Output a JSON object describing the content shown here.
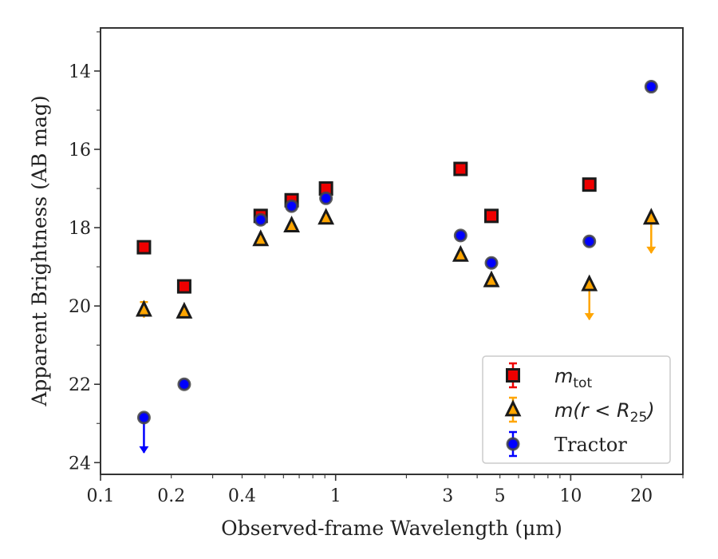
{
  "chart_data": {
    "type": "scatter",
    "xlabel": "Observed-frame Wavelength (μm)",
    "ylabel": "Apparent Brightness (AB mag)",
    "x_scale": "log",
    "y_inverted": true,
    "xlim": [
      0.1,
      30
    ],
    "ylim": [
      24.3,
      12.9
    ],
    "x_ticks": [
      {
        "value": 0.1,
        "label": "0.1"
      },
      {
        "value": 0.2,
        "label": "0.2"
      },
      {
        "value": 0.4,
        "label": "0.4"
      },
      {
        "value": 1,
        "label": "1"
      },
      {
        "value": 3,
        "label": "3"
      },
      {
        "value": 5,
        "label": "5"
      },
      {
        "value": 10,
        "label": "10"
      },
      {
        "value": 20,
        "label": "20"
      }
    ],
    "y_ticks": [
      {
        "value": 14,
        "label": "14"
      },
      {
        "value": 16,
        "label": "16"
      },
      {
        "value": 18,
        "label": "18"
      },
      {
        "value": 20,
        "label": "20"
      },
      {
        "value": 22,
        "label": "22"
      },
      {
        "value": 24,
        "label": "24"
      }
    ],
    "grid": false,
    "legend_position": "bottom-right",
    "series": [
      {
        "key": "mtot",
        "legend_main": "m",
        "legend_sub": "tot",
        "marker": "square",
        "fill": "#ee0000",
        "errcolor": "#ee0000",
        "points": [
          {
            "x": 0.153,
            "y": 18.5
          },
          {
            "x": 0.227,
            "y": 19.5
          },
          {
            "x": 0.48,
            "y": 17.7
          },
          {
            "x": 0.65,
            "y": 17.3
          },
          {
            "x": 0.91,
            "y": 17.0
          },
          {
            "x": 3.4,
            "y": 16.5
          },
          {
            "x": 4.6,
            "y": 17.7
          },
          {
            "x": 12.0,
            "y": 16.9
          }
        ]
      },
      {
        "key": "mr25",
        "legend_main": "m(r < R",
        "legend_sub": "25",
        "legend_tail": ")",
        "marker": "triangle",
        "fill": "#ffa500",
        "errcolor": "#ffa500",
        "points": [
          {
            "x": 0.153,
            "y": 20.1,
            "err": 0.2
          },
          {
            "x": 0.227,
            "y": 20.15
          },
          {
            "x": 0.48,
            "y": 18.3
          },
          {
            "x": 0.65,
            "y": 17.95
          },
          {
            "x": 0.91,
            "y": 17.75
          },
          {
            "x": 3.4,
            "y": 18.7
          },
          {
            "x": 4.6,
            "y": 19.35
          },
          {
            "x": 12.0,
            "y": 19.45,
            "upper_limit": true
          },
          {
            "x": 22.0,
            "y": 17.75,
            "upper_limit": true
          }
        ]
      },
      {
        "key": "tractor",
        "legend_main": "Tractor",
        "marker": "circle",
        "fill": "#0000ff",
        "errcolor": "#0000ff",
        "points": [
          {
            "x": 0.153,
            "y": 22.85,
            "upper_limit": true
          },
          {
            "x": 0.227,
            "y": 22.0
          },
          {
            "x": 0.48,
            "y": 17.8
          },
          {
            "x": 0.65,
            "y": 17.45
          },
          {
            "x": 0.91,
            "y": 17.25
          },
          {
            "x": 3.4,
            "y": 18.2
          },
          {
            "x": 4.6,
            "y": 18.9
          },
          {
            "x": 12.0,
            "y": 18.35
          },
          {
            "x": 22.0,
            "y": 14.4
          }
        ]
      }
    ]
  }
}
